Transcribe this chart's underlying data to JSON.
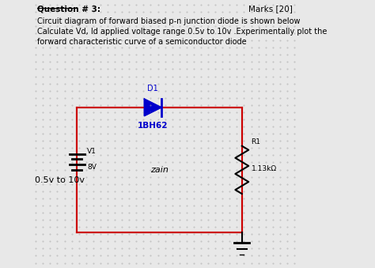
{
  "bg_color": "#e8e8e8",
  "dot_color": "#aaaaaa",
  "title_text": "Question # 3:",
  "marks_text": "Marks [20]",
  "desc_line1": "Circuit diagram of forward biased p-n junction diode is shown below",
  "desc_line2": "Calculate Vd, Id applied voltage range 0.5v to 10v .Experimentally plot the",
  "desc_line3": "forward characteristic curve of a semiconductor diode",
  "wire_color": "#cc0000",
  "component_color": "#0000cc",
  "black_color": "#000000",
  "diode_label": "D1",
  "diode_model": "1BH62",
  "resistor_label": "R1",
  "resistor_value": "1.13kΩ",
  "battery_label": "V1",
  "battery_value": "8V",
  "voltage_range": "0.5v to 10v",
  "designer": "zain"
}
